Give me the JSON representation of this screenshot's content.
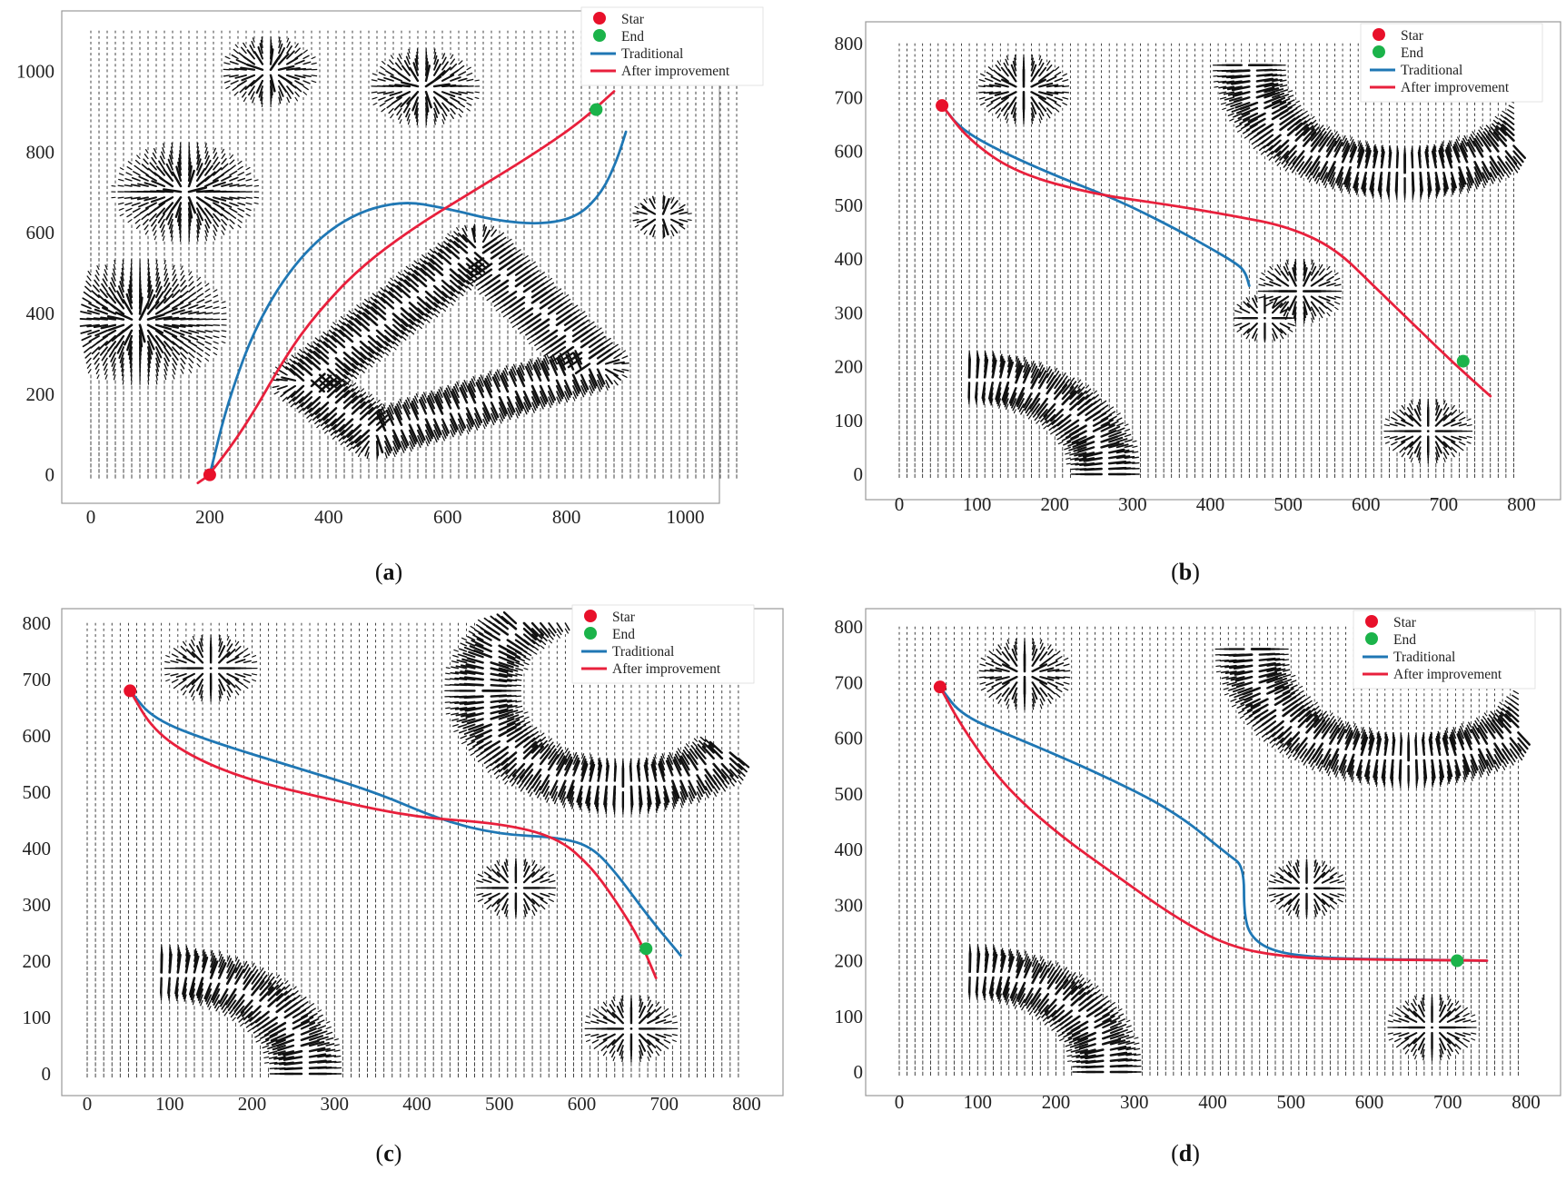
{
  "figure": {
    "legend_labels": {
      "start": "Star",
      "end": "End",
      "traditional": "Traditional",
      "improved": "After improvement"
    },
    "colors": {
      "start": "#e8102a",
      "end": "#1bb34a",
      "traditional": "#1f77b4",
      "improved": "#e8203c",
      "arrows": "#111111",
      "frame": "#999999"
    }
  },
  "chart_data": [
    {
      "type": "line",
      "caption": "(a)",
      "xlim": [
        0,
        1100
      ],
      "ylim": [
        -30,
        1100
      ],
      "xticks": [
        0,
        200,
        400,
        600,
        800,
        1000
      ],
      "yticks": [
        0,
        200,
        400,
        600,
        800,
        1000
      ],
      "start": [
        200,
        0
      ],
      "end": [
        850,
        905
      ],
      "series": [
        {
          "name": "Traditional",
          "x": [
            200,
            230,
            280,
            350,
            430,
            520,
            600,
            680,
            760,
            820,
            860,
            885,
            900
          ],
          "y": [
            0,
            180,
            380,
            540,
            640,
            680,
            660,
            630,
            620,
            640,
            700,
            780,
            850
          ]
        },
        {
          "name": "After improvement",
          "x": [
            180,
            200,
            260,
            330,
            380,
            450,
            540,
            640,
            740,
            820,
            880
          ],
          "y": [
            -20,
            0,
            120,
            300,
            400,
            510,
            610,
            700,
            790,
            870,
            950
          ]
        }
      ],
      "obstacles": [
        {
          "shape": "poly",
          "points": [
            [
              360,
              230
            ],
            [
              480,
              100
            ],
            [
              850,
              270
            ],
            [
              650,
              560
            ]
          ]
        },
        {
          "shape": "circle",
          "c": [
            160,
            700
          ],
          "r": 120
        },
        {
          "shape": "circle",
          "c": [
            80,
            380
          ],
          "r": 150
        },
        {
          "shape": "circle",
          "c": [
            300,
            1000
          ],
          "r": 80
        },
        {
          "shape": "circle",
          "c": [
            560,
            960
          ],
          "r": 90
        },
        {
          "shape": "circle",
          "c": [
            960,
            640
          ],
          "r": 45
        }
      ]
    },
    {
      "type": "line",
      "caption": "(b)",
      "xlim": [
        0,
        800
      ],
      "ylim": [
        0,
        800
      ],
      "xticks": [
        0,
        100,
        200,
        300,
        400,
        500,
        600,
        700,
        800
      ],
      "yticks": [
        0,
        100,
        200,
        300,
        400,
        500,
        600,
        700,
        800
      ],
      "start": [
        55,
        685
      ],
      "end": [
        725,
        210
      ],
      "series": [
        {
          "name": "Traditional",
          "x": [
            55,
            80,
            130,
            200,
            280,
            350,
            400,
            435,
            445,
            450
          ],
          "y": [
            685,
            640,
            600,
            555,
            510,
            460,
            420,
            390,
            375,
            350
          ]
        },
        {
          "name": "After improvement",
          "x": [
            55,
            90,
            150,
            250,
            350,
            430,
            500,
            560,
            610,
            660,
            710,
            760
          ],
          "y": [
            685,
            620,
            560,
            520,
            500,
            480,
            460,
            420,
            350,
            280,
            210,
            145
          ]
        }
      ],
      "obstacles": [
        {
          "shape": "arc",
          "c": [
            85,
            0
          ],
          "r": 180,
          "a0": 0,
          "a1": 90
        },
        {
          "shape": "arc",
          "c": [
            650,
            760
          ],
          "r": 200,
          "a0": 180,
          "a1": 360
        },
        {
          "shape": "circle",
          "c": [
            160,
            715
          ],
          "r": 60
        },
        {
          "shape": "circle",
          "c": [
            515,
            340
          ],
          "r": 55
        },
        {
          "shape": "circle",
          "c": [
            470,
            290
          ],
          "r": 40
        },
        {
          "shape": "circle",
          "c": [
            680,
            80
          ],
          "r": 55
        }
      ]
    },
    {
      "type": "line",
      "caption": "(c)",
      "xlim": [
        0,
        800
      ],
      "ylim": [
        0,
        800
      ],
      "xticks": [
        0,
        100,
        200,
        300,
        400,
        500,
        600,
        700,
        800
      ],
      "yticks": [
        0,
        100,
        200,
        300,
        400,
        500,
        600,
        700,
        800
      ],
      "start": [
        52,
        680
      ],
      "end": [
        678,
        222
      ],
      "series": [
        {
          "name": "Traditional",
          "x": [
            52,
            80,
            150,
            250,
            350,
            430,
            500,
            570,
            610,
            640,
            680,
            720
          ],
          "y": [
            680,
            630,
            590,
            545,
            500,
            450,
            425,
            420,
            405,
            360,
            280,
            210
          ]
        },
        {
          "name": "After improvement",
          "x": [
            52,
            80,
            130,
            200,
            300,
            400,
            500,
            570,
            610,
            640,
            670,
            690
          ],
          "y": [
            680,
            610,
            560,
            520,
            485,
            455,
            445,
            420,
            370,
            310,
            240,
            170
          ]
        }
      ],
      "obstacles": [
        {
          "shape": "arc",
          "c": [
            85,
            0
          ],
          "r": 180,
          "a0": 0,
          "a1": 90
        },
        {
          "shape": "arc",
          "c": [
            650,
            680
          ],
          "r": 170,
          "a0": 90,
          "a1": 320
        },
        {
          "shape": "circle",
          "c": [
            150,
            720
          ],
          "r": 55
        },
        {
          "shape": "circle",
          "c": [
            520,
            330
          ],
          "r": 50
        },
        {
          "shape": "circle",
          "c": [
            660,
            80
          ],
          "r": 55
        }
      ]
    },
    {
      "type": "line",
      "caption": "(d)",
      "xlim": [
        0,
        800
      ],
      "ylim": [
        0,
        800
      ],
      "xticks": [
        0,
        100,
        200,
        300,
        400,
        500,
        600,
        700,
        800
      ],
      "yticks": [
        0,
        100,
        200,
        300,
        400,
        500,
        600,
        700,
        800
      ],
      "start": [
        52,
        692
      ],
      "end": [
        712,
        200
      ],
      "series": [
        {
          "name": "Traditional",
          "x": [
            52,
            80,
            150,
            250,
            350,
            420,
            440,
            440,
            450,
            480,
            540,
            600,
            700,
            750
          ],
          "y": [
            692,
            640,
            600,
            540,
            470,
            390,
            370,
            280,
            240,
            215,
            205,
            203,
            201,
            200
          ]
        },
        {
          "name": "After improvement",
          "x": [
            52,
            80,
            130,
            200,
            280,
            350,
            420,
            500,
            600,
            700,
            750
          ],
          "y": [
            692,
            620,
            520,
            430,
            350,
            280,
            225,
            205,
            202,
            201,
            200
          ]
        }
      ],
      "obstacles": [
        {
          "shape": "arc",
          "c": [
            85,
            0
          ],
          "r": 180,
          "a0": 0,
          "a1": 90
        },
        {
          "shape": "arc",
          "c": [
            650,
            760
          ],
          "r": 200,
          "a0": 180,
          "a1": 360
        },
        {
          "shape": "circle",
          "c": [
            160,
            715
          ],
          "r": 60
        },
        {
          "shape": "circle",
          "c": [
            520,
            330
          ],
          "r": 50
        },
        {
          "shape": "circle",
          "c": [
            680,
            80
          ],
          "r": 55
        }
      ]
    }
  ]
}
